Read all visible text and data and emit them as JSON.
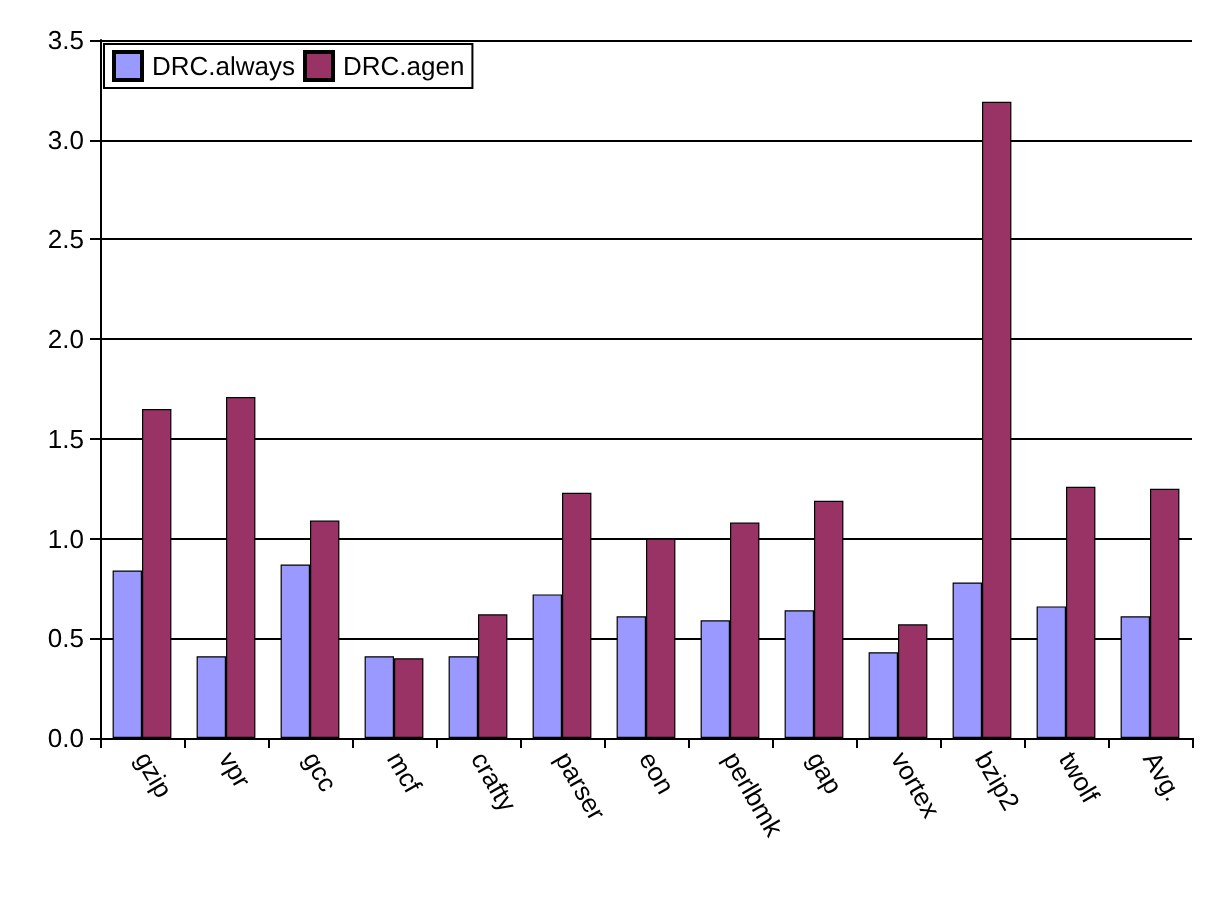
{
  "chart_data": {
    "type": "bar",
    "categories": [
      "gzip",
      "vpr",
      "gcc",
      "mcf",
      "crafty",
      "parser",
      "eon",
      "perlbmk",
      "gap",
      "vortex",
      "bzip2",
      "twolf",
      "Avg."
    ],
    "series": [
      {
        "name": "DRC.always",
        "color": "#9999ff",
        "values": [
          0.84,
          0.41,
          0.87,
          0.41,
          0.41,
          0.72,
          0.61,
          0.59,
          0.64,
          0.43,
          0.78,
          0.66,
          0.61
        ]
      },
      {
        "name": "DRC.agen",
        "color": "#993366",
        "values": [
          1.65,
          1.71,
          1.09,
          0.4,
          0.62,
          1.23,
          1.0,
          1.08,
          1.19,
          0.57,
          3.19,
          1.26,
          1.25
        ]
      }
    ],
    "ylim": [
      0,
      3.5
    ],
    "yticks": [
      {
        "value": 0,
        "label": "0.0"
      },
      0.5,
      {
        "value": 1,
        "label": "1.0"
      },
      1.5,
      {
        "value": 2,
        "label": "2.0"
      },
      2.5,
      {
        "value": 3,
        "label": "3.0"
      },
      3.5
    ],
    "grid": "y",
    "legend": "top left"
  }
}
